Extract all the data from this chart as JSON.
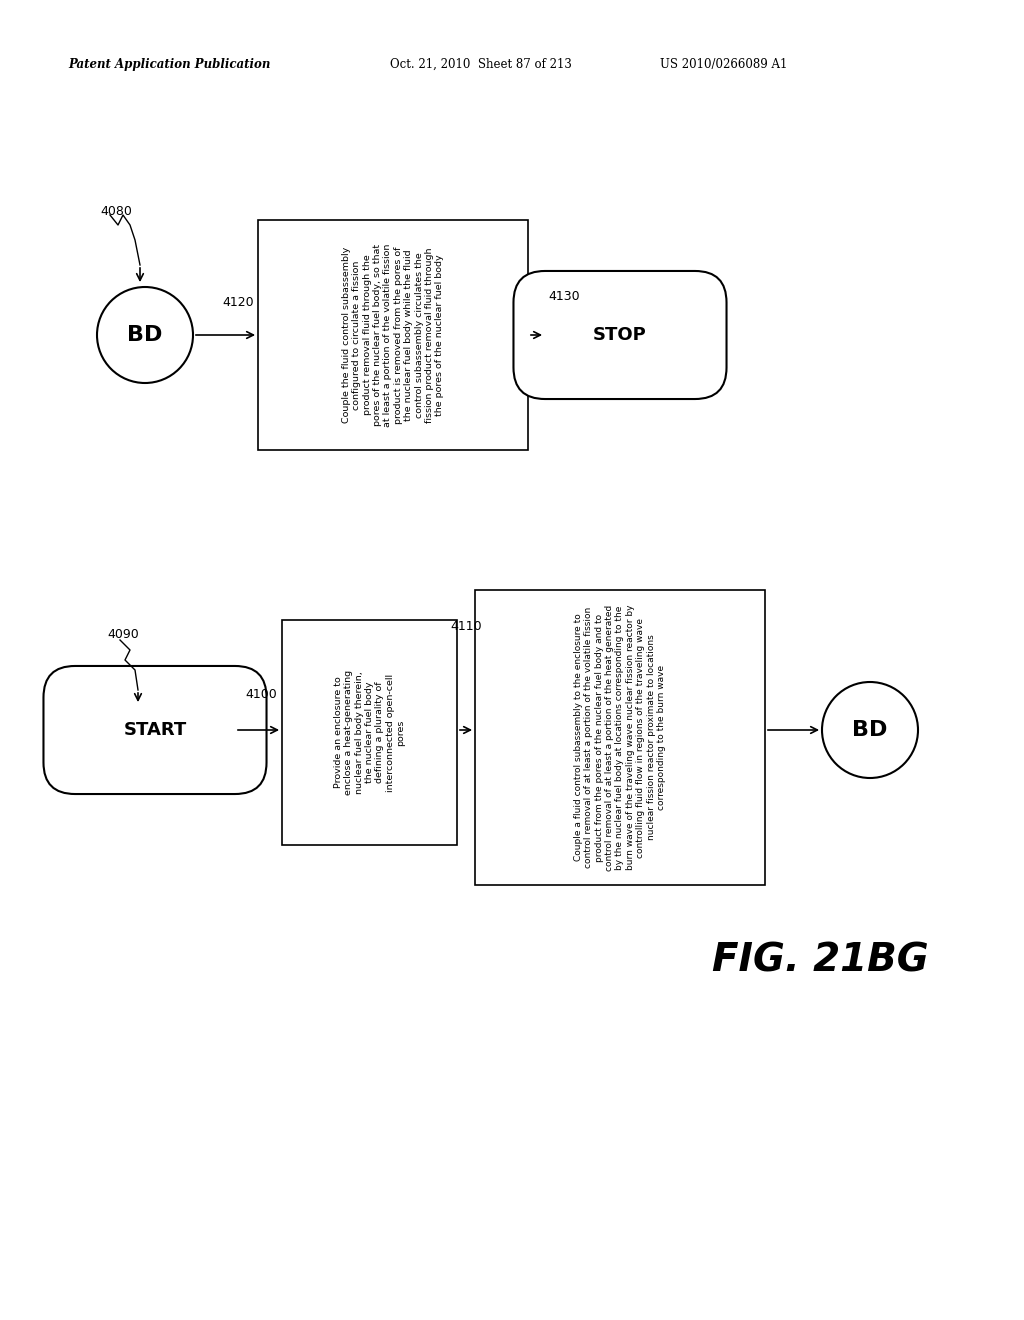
{
  "title_header_left": "Patent Application Publication",
  "title_header_mid": "Oct. 21, 2010  Sheet 87 of 213",
  "title_header_right": "US 2010/0266089 A1",
  "fig_label": "FIG. 21BG",
  "bg_color": "#ffffff",
  "top_flow": {
    "ref_label": "4080",
    "circle_label": "BD",
    "arrow_label": "4120",
    "box_text": "Couple the fluid control subassembly\nconfigured to circulate a fission\nproduct removal fluid through the\npores of the nuclear fuel body, so that\nat least a portion of the volatile fission\nproduct is removed from the pores of\nthe nuclear fuel body while the fluid\ncontrol subassembly circulates the\nfission product removal fluid through\nthe pores of the nuclear fuel body",
    "stop_label": "4130",
    "stop_text": "STOP"
  },
  "bottom_flow": {
    "start_text": "START",
    "ref_label": "4090",
    "box1_label": "4100",
    "box1_text": "Provide an enclosure to\nenclose a heat-generating\nnuclear fuel body therein,\nthe nuclear fuel body\ndefining a plurality of\ninterconnected open-cell\npores",
    "box2_label": "4110",
    "box2_text": "Couple a fluid control subassembly to the enclosure to\ncontrol removal of at least a portion of the volatile fission\nproduct from the pores of the nuclear fuel body and to\ncontrol removal of at least a portion of the heat generated\nby the nuclear fuel body at locations corresponding to the\nburn wave of the traveling wave nuclear fission reactor by\ncontrolling fluid flow in regions of the traveling wave\nnuclear fission reactor proximate to locations\ncorresponding to the burn wave",
    "circle_label": "BD"
  }
}
